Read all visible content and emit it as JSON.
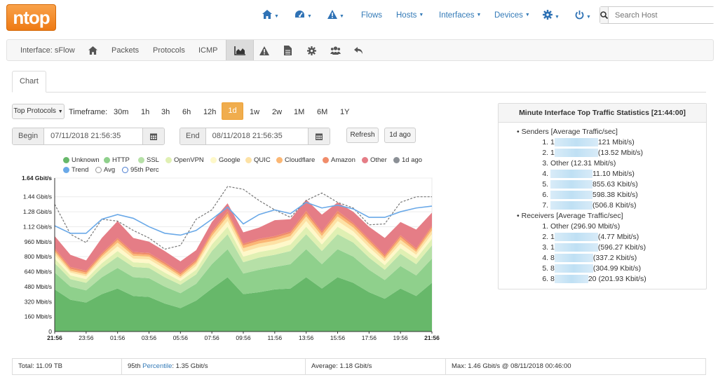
{
  "header": {
    "logo": "ntop",
    "nav": {
      "flows": "Flows",
      "hosts": "Hosts",
      "interfaces": "Interfaces",
      "devices": "Devices"
    },
    "search_placeholder": "Search Host"
  },
  "submenu": {
    "interface": "Interface: sFlow",
    "packets": "Packets",
    "protocols": "Protocols",
    "icmp": "ICMP"
  },
  "tab": "Chart",
  "controls": {
    "top_protocols": "Top Protocols",
    "timeframe_label": "Timeframe:",
    "timeframes": [
      "30m",
      "1h",
      "3h",
      "6h",
      "12h",
      "1d",
      "1w",
      "2w",
      "1M",
      "6M",
      "1Y"
    ],
    "active_timeframe": "1d",
    "begin_label": "Begin",
    "begin_value": "07/11/2018 21:56:35",
    "end_label": "End",
    "end_value": "08/11/2018 21:56:35",
    "refresh": "Refresh",
    "ago": "1d ago"
  },
  "legend": [
    {
      "name": "Unknown",
      "color": "#67b86a"
    },
    {
      "name": "HTTP",
      "color": "#8fd08c"
    },
    {
      "name": "SSL",
      "color": "#b6e0a7"
    },
    {
      "name": "OpenVPN",
      "color": "#e0f0b3"
    },
    {
      "name": "Google",
      "color": "#fef8c9"
    },
    {
      "name": "QUIC",
      "color": "#fde2a5"
    },
    {
      "name": "Cloudflare",
      "color": "#fbb774"
    },
    {
      "name": "Amazon",
      "color": "#f08c6a"
    },
    {
      "name": "Other",
      "color": "#e57d86"
    },
    {
      "name": "1d ago",
      "color": "#8b9096"
    },
    {
      "name": "Trend",
      "color": "#6aa9e8"
    },
    {
      "name": "Avg",
      "color": "#ffffff"
    },
    {
      "name": "95th Perc",
      "color": "#ffffff"
    }
  ],
  "chart_data": {
    "type": "area",
    "ylim": [
      0,
      1.64
    ],
    "yticks": [
      "0",
      "160 Mbit/s",
      "320 Mbit/s",
      "480 Mbit/s",
      "640 Mbit/s",
      "800 Mbit/s",
      "960 Mbit/s",
      "1.12 Gbit/s",
      "1.28 Gbit/s",
      "1.44 Gbit/s",
      "1.64 Gbit/s"
    ],
    "ytick_values": [
      0,
      0.16,
      0.32,
      0.48,
      0.64,
      0.8,
      0.96,
      1.12,
      1.28,
      1.44,
      1.64
    ],
    "xticks": [
      "21:56",
      "23:56",
      "01:56",
      "03:56",
      "05:56",
      "07:56",
      "09:56",
      "11:56",
      "13:56",
      "15:56",
      "17:56",
      "19:56",
      "21:56"
    ],
    "series": [
      {
        "name": "Unknown",
        "color": "#67b86a",
        "values": [
          0.45,
          0.34,
          0.31,
          0.4,
          0.46,
          0.38,
          0.37,
          0.3,
          0.25,
          0.33,
          0.46,
          0.58,
          0.4,
          0.42,
          0.45,
          0.46,
          0.58,
          0.46,
          0.58,
          0.52,
          0.42,
          0.35,
          0.46,
          0.38,
          0.52
        ]
      },
      {
        "name": "HTTP",
        "color": "#8fd08c",
        "values": [
          0.18,
          0.14,
          0.13,
          0.18,
          0.22,
          0.2,
          0.2,
          0.18,
          0.16,
          0.18,
          0.26,
          0.3,
          0.22,
          0.24,
          0.24,
          0.26,
          0.3,
          0.26,
          0.3,
          0.28,
          0.24,
          0.2,
          0.24,
          0.22,
          0.26
        ]
      },
      {
        "name": "SSL",
        "color": "#b6e0a7",
        "values": [
          0.1,
          0.08,
          0.08,
          0.1,
          0.12,
          0.11,
          0.11,
          0.1,
          0.09,
          0.1,
          0.14,
          0.16,
          0.12,
          0.13,
          0.13,
          0.14,
          0.16,
          0.14,
          0.16,
          0.15,
          0.13,
          0.11,
          0.13,
          0.12,
          0.14
        ]
      },
      {
        "name": "OpenVPN",
        "color": "#e0f0b3",
        "values": [
          0.05,
          0.04,
          0.04,
          0.05,
          0.06,
          0.05,
          0.05,
          0.05,
          0.04,
          0.05,
          0.07,
          0.08,
          0.06,
          0.06,
          0.06,
          0.07,
          0.08,
          0.07,
          0.08,
          0.07,
          0.06,
          0.05,
          0.06,
          0.06,
          0.07
        ]
      },
      {
        "name": "Google",
        "color": "#fef8c9",
        "values": [
          0.04,
          0.03,
          0.03,
          0.04,
          0.05,
          0.04,
          0.04,
          0.04,
          0.03,
          0.04,
          0.05,
          0.06,
          0.05,
          0.05,
          0.05,
          0.05,
          0.06,
          0.05,
          0.06,
          0.05,
          0.05,
          0.04,
          0.05,
          0.04,
          0.05
        ]
      },
      {
        "name": "QUIC",
        "color": "#fde2a5",
        "values": [
          0.03,
          0.02,
          0.02,
          0.03,
          0.04,
          0.03,
          0.03,
          0.03,
          0.02,
          0.03,
          0.04,
          0.05,
          0.04,
          0.04,
          0.04,
          0.04,
          0.05,
          0.04,
          0.05,
          0.04,
          0.04,
          0.03,
          0.04,
          0.03,
          0.04
        ]
      },
      {
        "name": "Cloudflare",
        "color": "#fbb774",
        "values": [
          0.02,
          0.02,
          0.02,
          0.02,
          0.03,
          0.02,
          0.02,
          0.02,
          0.02,
          0.02,
          0.03,
          0.03,
          0.03,
          0.03,
          0.03,
          0.03,
          0.03,
          0.03,
          0.03,
          0.03,
          0.03,
          0.02,
          0.03,
          0.02,
          0.03
        ]
      },
      {
        "name": "Amazon",
        "color": "#f08c6a",
        "values": [
          0.02,
          0.02,
          0.02,
          0.02,
          0.02,
          0.02,
          0.02,
          0.02,
          0.02,
          0.02,
          0.02,
          0.03,
          0.02,
          0.02,
          0.02,
          0.02,
          0.03,
          0.02,
          0.03,
          0.02,
          0.02,
          0.02,
          0.02,
          0.02,
          0.02
        ]
      },
      {
        "name": "Other",
        "color": "#e57d86",
        "values": [
          0.13,
          0.13,
          0.11,
          0.16,
          0.18,
          0.15,
          0.12,
          0.12,
          0.12,
          0.1,
          0.1,
          0.08,
          0.12,
          0.12,
          0.17,
          0.13,
          0.12,
          0.18,
          0.09,
          0.12,
          0.13,
          0.18,
          0.14,
          0.2,
          0.14
        ]
      }
    ],
    "trend": [
      1.13,
      1.05,
      1.05,
      1.2,
      1.25,
      1.21,
      1.12,
      1.05,
      1.03,
      1.08,
      1.2,
      1.33,
      1.15,
      1.25,
      1.3,
      1.26,
      1.38,
      1.32,
      1.35,
      1.31,
      1.22,
      1.22,
      1.28,
      1.32,
      1.34
    ],
    "ago": [
      1.36,
      1.04,
      0.95,
      1.2,
      1.18,
      1.08,
      1.0,
      0.88,
      0.92,
      1.2,
      1.3,
      1.55,
      1.52,
      1.4,
      1.3,
      1.22,
      1.4,
      1.48,
      1.38,
      1.32,
      1.14,
      1.15,
      1.38,
      1.44,
      1.44
    ]
  },
  "stats": {
    "title": "Minute Interface Top Traffic Statistics [21:44:00]",
    "senders_label": "Senders [Average Traffic/sec]",
    "senders": [
      "121 Mbit/s)",
      "(13.52 Mbit/s)",
      "Other (12.31 Mbit/s)",
      "11.10 Mbit/s)",
      "855.63 Kbit/s)",
      "598.38 Kbit/s)",
      "(506.8 Kbit/s)"
    ],
    "receivers_label": "Receivers [Average Traffic/sec]",
    "receivers": [
      "Other (296.90 Mbit/s)",
      "(4.77 Mbit/s)",
      "(596.27 Kbit/s)",
      "(337.2 Kbit/s)",
      "(304.99 Kbit/s)",
      "20 (201.93 Kbit/s)"
    ],
    "receiver_prefix": [
      "",
      "1",
      "1",
      "8",
      "8",
      "8"
    ],
    "sender_prefix": [
      "1",
      "1",
      "",
      "",
      "",
      "",
      ""
    ]
  },
  "footer": {
    "total": "Total: 11.09 TB",
    "perc_prefix": "95th",
    "perc_link": "Percentile",
    "perc_value": ": 1.35 Gbit/s",
    "average": "Average: 1.18 Gbit/s",
    "max": "Max: 1.46 Gbit/s @ 08/11/2018 00:46:00"
  }
}
